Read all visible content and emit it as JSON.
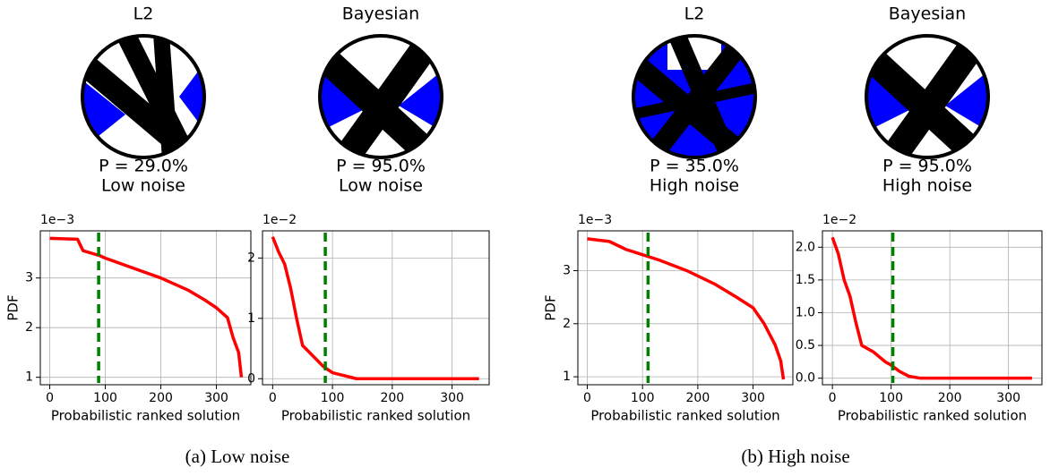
{
  "chart_data": [
    {
      "type": "line",
      "title": "L2",
      "annotations": [
        "P = 29.0%",
        "Low noise"
      ],
      "offset_label": "1e−3",
      "ylabel": "PDF",
      "xlabel": "Probabilistic ranked solution",
      "x": [
        0,
        50,
        60,
        90,
        100,
        150,
        200,
        250,
        280,
        300,
        320,
        330,
        340,
        345
      ],
      "values": [
        3.8,
        3.78,
        3.55,
        3.45,
        3.4,
        3.2,
        3.0,
        2.75,
        2.55,
        2.4,
        2.2,
        1.8,
        1.5,
        1.0
      ],
      "color": "#ff0000",
      "vline": {
        "x": 88,
        "color": "#008000"
      },
      "xlim": [
        -17,
        362
      ],
      "ylim": [
        0.85,
        3.95
      ],
      "xticks": [
        0,
        100,
        200,
        300
      ],
      "yticks": [
        1,
        2,
        3
      ],
      "grid": true
    },
    {
      "type": "line",
      "title": "Bayesian",
      "annotations": [
        "P = 95.0%",
        "Low noise"
      ],
      "offset_label": "1e−2",
      "xlabel": "Probabilistic ranked solution",
      "x": [
        0,
        10,
        20,
        30,
        40,
        50,
        70,
        85,
        100,
        120,
        140,
        345
      ],
      "values": [
        2.35,
        2.1,
        1.9,
        1.5,
        1.0,
        0.55,
        0.35,
        0.2,
        0.1,
        0.05,
        0,
        0
      ],
      "color": "#ff0000",
      "vline": {
        "x": 88,
        "color": "#008000"
      },
      "xlim": [
        -17,
        362
      ],
      "ylim": [
        -0.1,
        2.45
      ],
      "xticks": [
        0,
        100,
        200,
        300
      ],
      "yticks": [
        0,
        1,
        2
      ],
      "grid": true
    },
    {
      "type": "line",
      "title": "L2",
      "annotations": [
        "P = 35.0%",
        "High noise"
      ],
      "offset_label": "1e−3",
      "ylabel": "PDF",
      "xlabel": "Probabilistic ranked solution",
      "x": [
        0,
        40,
        70,
        100,
        130,
        180,
        230,
        270,
        300,
        320,
        340,
        350,
        355
      ],
      "values": [
        3.6,
        3.55,
        3.4,
        3.3,
        3.2,
        3.0,
        2.75,
        2.5,
        2.3,
        2.0,
        1.6,
        1.3,
        0.95
      ],
      "color": "#ff0000",
      "vline": {
        "x": 110,
        "color": "#008000"
      },
      "xlim": [
        -17,
        372
      ],
      "ylim": [
        0.85,
        3.75
      ],
      "xticks": [
        0,
        100,
        200,
        300
      ],
      "yticks": [
        1,
        2,
        3
      ],
      "grid": true
    },
    {
      "type": "line",
      "title": "Bayesian",
      "annotations": [
        "P = 95.0%",
        "High noise"
      ],
      "offset_label": "1e−2",
      "xlabel": "Probabilistic ranked solution",
      "x": [
        0,
        10,
        20,
        30,
        40,
        50,
        70,
        90,
        100,
        115,
        130,
        150,
        340
      ],
      "values": [
        2.15,
        1.9,
        1.5,
        1.25,
        0.85,
        0.5,
        0.4,
        0.25,
        0.2,
        0.1,
        0.03,
        0,
        0
      ],
      "color": "#ff0000",
      "vline": {
        "x": 103,
        "color": "#008000"
      },
      "xlim": [
        -17,
        357
      ],
      "ylim": [
        -0.1,
        2.25
      ],
      "xticks": [
        0,
        100,
        200,
        300
      ],
      "yticks": [
        {
          "value": 0,
          "label": "0.0"
        },
        0.5,
        {
          "value": 1,
          "label": "1.0"
        },
        1.5,
        {
          "value": 2,
          "label": "2.0"
        }
      ],
      "grid": true
    }
  ],
  "captions": [
    "(a) Low noise",
    "(b) High noise"
  ]
}
